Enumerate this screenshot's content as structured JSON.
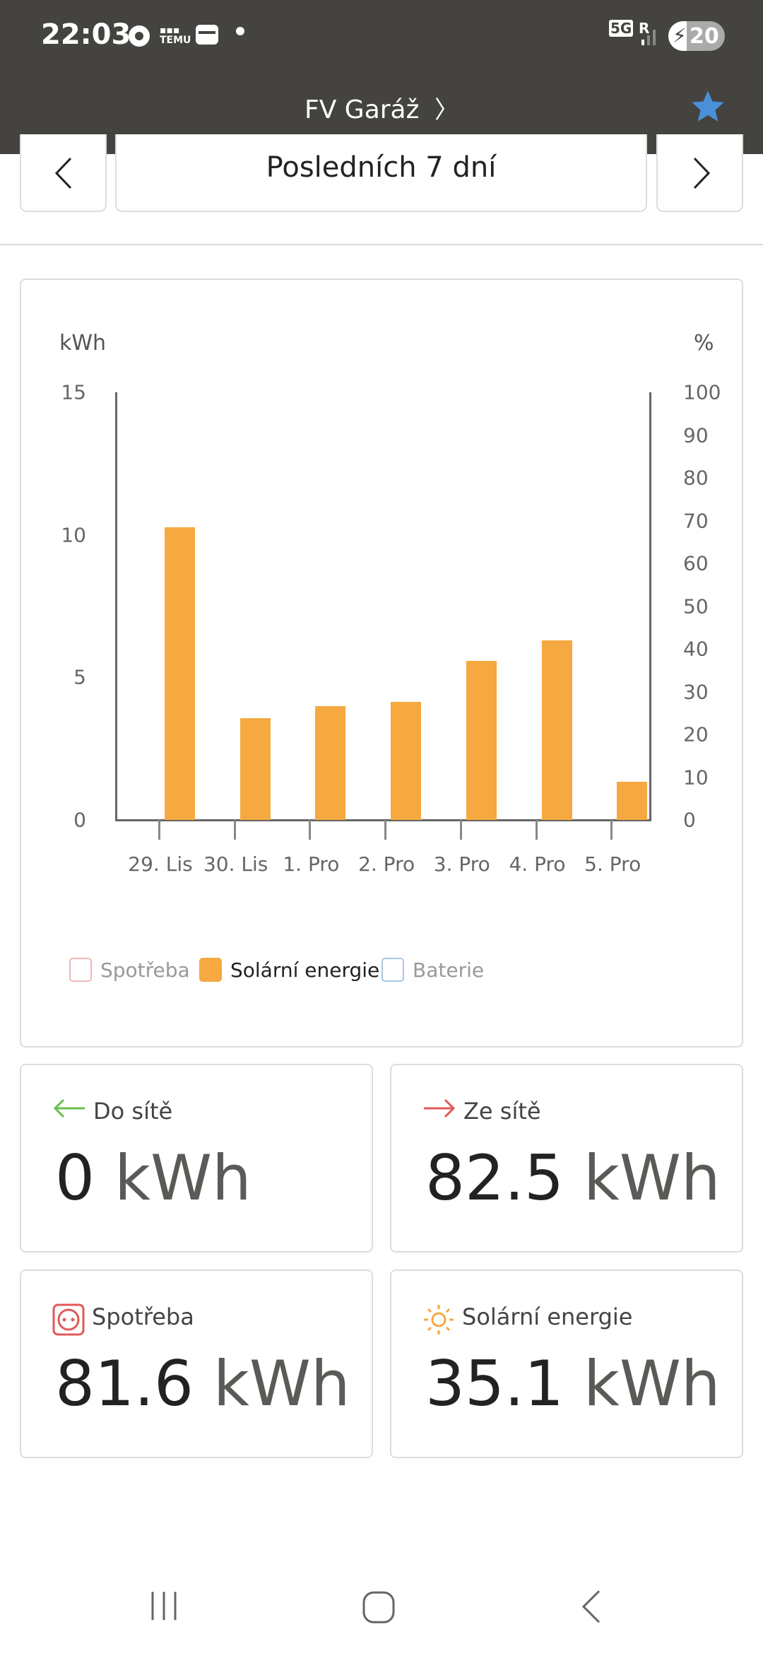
{
  "status_bar": {
    "time": "22:03",
    "network": "5G",
    "roaming": "R",
    "battery": "20"
  },
  "header": {
    "title": "FV Garáž",
    "favorite": true,
    "star_color": "#4a90d9"
  },
  "period": {
    "label": "Posledních 7 dní"
  },
  "chart_data": {
    "type": "bar",
    "ylabel": "kWh",
    "y2label": "%",
    "ylim": [
      0,
      15
    ],
    "y2lim": [
      0,
      100
    ],
    "yticks": [
      "0",
      "5",
      "10",
      "15"
    ],
    "y2ticks": [
      "0",
      "10",
      "20",
      "30",
      "40",
      "50",
      "60",
      "70",
      "80",
      "90",
      "100"
    ],
    "categories": [
      "29. Lis",
      "30. Lis",
      "1. Pro",
      "2. Pro",
      "3. Pro",
      "4. Pro",
      "5. Pro"
    ],
    "series": [
      {
        "name": "Solární energie",
        "color": "#f5a940",
        "values": [
          10.27,
          3.57,
          3.99,
          4.13,
          5.59,
          6.29,
          1.33
        ]
      }
    ],
    "legend": [
      {
        "label": "Spotřeba",
        "color": "#f0b8b8",
        "active": false
      },
      {
        "label": "Solární energie",
        "color": "#f5a940",
        "active": true
      },
      {
        "label": "Baterie",
        "color": "#a8c8e0",
        "active": false
      }
    ]
  },
  "stats": [
    {
      "label": "Do sítě",
      "value": "0",
      "unit": "kWh",
      "icon": "arrow-left-icon",
      "color": "#6abf4b"
    },
    {
      "label": "Ze sítě",
      "value": "82.5",
      "unit": "kWh",
      "icon": "arrow-right-icon",
      "color": "#e05a5a"
    },
    {
      "label": "Spotřeba",
      "value": "81.6",
      "unit": "kWh",
      "icon": "socket-icon",
      "color": "#e05a5a"
    },
    {
      "label": "Solární energie",
      "value": "35.1",
      "unit": "kWh",
      "icon": "sun-icon",
      "color": "#f5a940"
    }
  ]
}
